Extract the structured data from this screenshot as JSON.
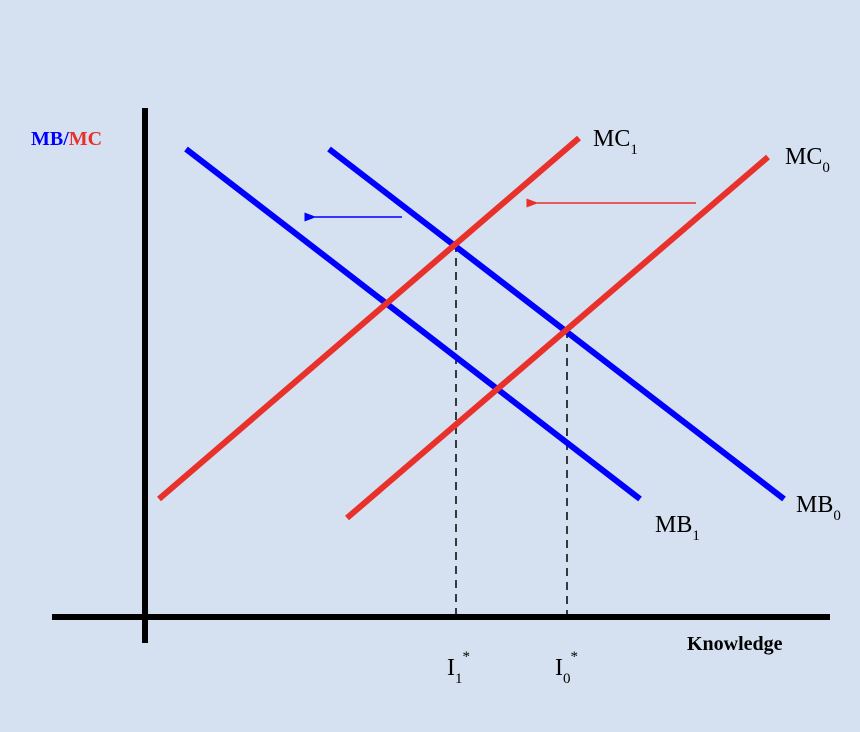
{
  "colors": {
    "background": "#d5e1f0",
    "mb": "#0000ff",
    "mc": "#e8312a",
    "axis": "#000000"
  },
  "y_axis_label": {
    "mb": "MB",
    "separator": "/",
    "mc": "MC"
  },
  "x_axis_label": "Knowledge",
  "curves": {
    "mc1": {
      "base": "MC",
      "sub": "1"
    },
    "mc0": {
      "base": "MC",
      "sub": "0"
    },
    "mb1": {
      "base": "MB",
      "sub": "1"
    },
    "mb0": {
      "base": "MB",
      "sub": "0"
    }
  },
  "equilibria": {
    "i1": {
      "base": "I",
      "sub": "1",
      "sup": "*"
    },
    "i0": {
      "base": "I",
      "sub": "0",
      "sup": "*"
    }
  },
  "shifts": {
    "mb_shift": "left",
    "mc_shift": "left"
  }
}
